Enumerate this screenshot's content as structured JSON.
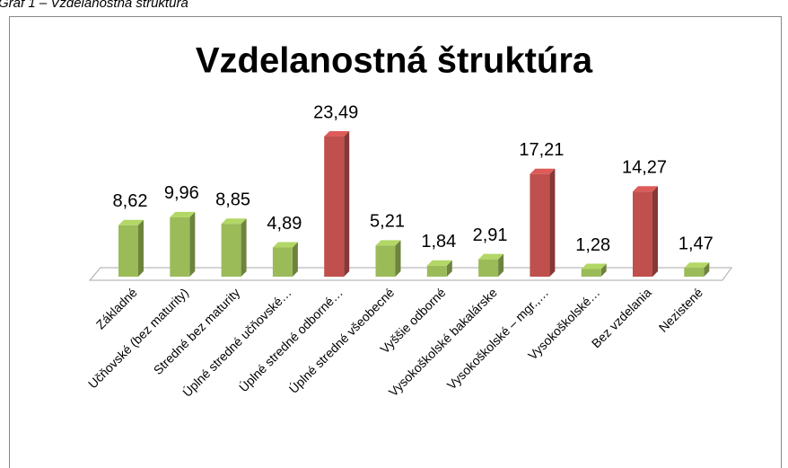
{
  "caption": "Graf 1 – Vzdelanostná štruktúra",
  "chart_data": {
    "type": "bar3d",
    "title": "Vzdelanostná štruktúra",
    "categories": [
      "Základné",
      "Učňovské (bez maturity)",
      "Stredné bez maturity",
      "Úplné stredné učňovské…",
      "Úplné stredné odborné…",
      "Úplné stredné všeobecné",
      "Vyššie odborné",
      "Vysokoškolské bakalárske",
      "Vysokoškolské – mgr.,…",
      "Vysokoškolské…",
      "Bez vzdelania",
      "Nezistené"
    ],
    "values": [
      8.62,
      9.96,
      8.85,
      4.89,
      23.49,
      5.21,
      1.84,
      2.91,
      17.21,
      1.28,
      14.27,
      1.47
    ],
    "value_labels": [
      "8,62",
      "9,96",
      "8,85",
      "4,89",
      "23,49",
      "5,21",
      "1,84",
      "2,91",
      "17,21",
      "1,28",
      "14,27",
      "1,47"
    ],
    "colors": [
      "#9bbb59",
      "#9bbb59",
      "#9bbb59",
      "#9bbb59",
      "#c0504d",
      "#9bbb59",
      "#9bbb59",
      "#9bbb59",
      "#c0504d",
      "#9bbb59",
      "#c0504d",
      "#9bbb59"
    ]
  }
}
